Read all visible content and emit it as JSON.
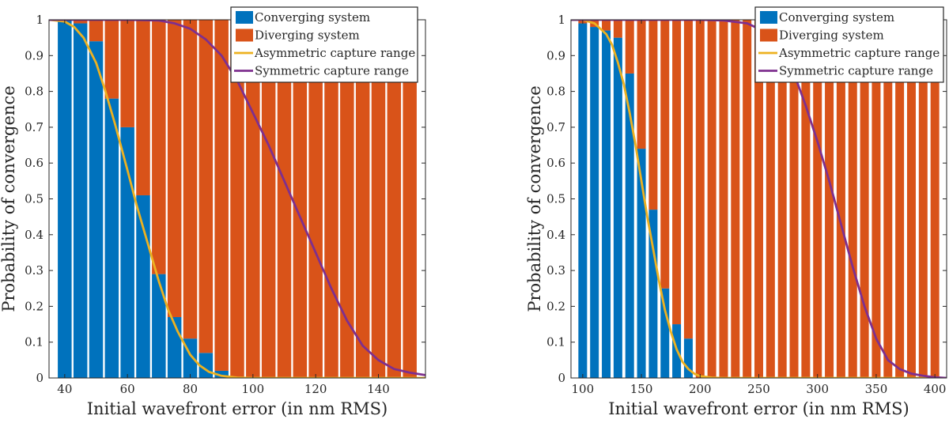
{
  "colors": {
    "converging": "#0072BD",
    "diverging": "#D95319",
    "asymmetric": "#EDB120",
    "symmetric": "#7E2F8E",
    "axis": "#262626"
  },
  "chart_data": [
    {
      "type": "bar",
      "xlabel": "Initial wavefront error (in nm RMS)",
      "ylabel": "Probability of convergence",
      "xlim": [
        35,
        155
      ],
      "ylim": [
        0,
        1
      ],
      "xticks": [
        40,
        60,
        80,
        100,
        120,
        140
      ],
      "yticks": [
        0,
        0.1,
        0.2,
        0.3,
        0.4,
        0.5,
        0.6,
        0.7,
        0.8,
        0.9,
        1
      ],
      "stacked": true,
      "grid": false,
      "legend_position": "top-right",
      "bar_x": [
        40,
        45,
        50,
        55,
        60,
        65,
        70,
        75,
        80,
        85,
        90,
        95,
        100,
        105,
        110,
        115,
        120,
        125,
        130,
        135,
        140,
        145,
        150
      ],
      "series": [
        {
          "name": "Converging system",
          "kind": "bar",
          "values": [
            1.0,
            0.99,
            0.94,
            0.78,
            0.7,
            0.51,
            0.29,
            0.17,
            0.11,
            0.07,
            0.02,
            0,
            0,
            0,
            0,
            0,
            0,
            0,
            0,
            0,
            0,
            0,
            0
          ]
        },
        {
          "name": "Diverging system",
          "kind": "bar",
          "values": [
            0.0,
            0.01,
            0.06,
            0.22,
            0.3,
            0.49,
            0.71,
            0.83,
            0.89,
            0.93,
            0.98,
            1,
            1,
            1,
            1,
            1,
            1,
            1,
            1,
            1,
            1,
            1,
            1
          ]
        },
        {
          "name": "Asymmetric capture range",
          "kind": "line",
          "x": [
            35,
            40,
            43,
            46,
            50,
            53,
            56,
            60,
            63,
            66,
            70,
            73,
            76,
            80,
            83,
            86,
            90,
            95,
            100,
            110,
            120,
            130,
            140,
            150,
            155
          ],
          "y": [
            1.0,
            0.995,
            0.98,
            0.95,
            0.88,
            0.8,
            0.71,
            0.58,
            0.48,
            0.39,
            0.27,
            0.19,
            0.13,
            0.065,
            0.035,
            0.017,
            0.006,
            0.001,
            0,
            0,
            0,
            0,
            0,
            0,
            0
          ]
        },
        {
          "name": "Symmetric capture range",
          "kind": "line",
          "x": [
            35,
            50,
            60,
            70,
            75,
            80,
            85,
            90,
            95,
            100,
            105,
            110,
            115,
            120,
            125,
            130,
            135,
            140,
            145,
            150,
            155
          ],
          "y": [
            1.0,
            1.0,
            1.0,
            0.998,
            0.99,
            0.975,
            0.945,
            0.9,
            0.83,
            0.74,
            0.65,
            0.55,
            0.45,
            0.35,
            0.25,
            0.16,
            0.09,
            0.05,
            0.025,
            0.015,
            0.008
          ]
        }
      ]
    },
    {
      "type": "bar",
      "xlabel": "Initial wavefront error (in nm RMS)",
      "ylabel": "Probability of convergence",
      "xlim": [
        90,
        410
      ],
      "ylim": [
        0,
        1
      ],
      "xticks": [
        100,
        150,
        200,
        250,
        300,
        350,
        400
      ],
      "yticks": [
        0,
        0.1,
        0.2,
        0.3,
        0.4,
        0.5,
        0.6,
        0.7,
        0.8,
        0.9,
        1
      ],
      "stacked": true,
      "grid": false,
      "legend_position": "top-right",
      "bar_x": [
        100,
        110,
        120,
        130,
        140,
        150,
        160,
        170,
        180,
        190,
        200,
        210,
        220,
        230,
        240,
        250,
        260,
        270,
        280,
        290,
        300,
        310,
        320,
        330,
        340,
        350,
        360,
        370,
        380,
        390,
        400
      ],
      "series": [
        {
          "name": "Converging system",
          "kind": "bar",
          "values": [
            0.99,
            0.98,
            0.97,
            0.95,
            0.85,
            0.64,
            0.47,
            0.25,
            0.15,
            0.11,
            0,
            0,
            0,
            0,
            0,
            0,
            0,
            0,
            0,
            0,
            0,
            0,
            0,
            0,
            0,
            0,
            0,
            0,
            0,
            0,
            0
          ]
        },
        {
          "name": "Diverging system",
          "kind": "bar",
          "values": [
            0.01,
            0.02,
            0.03,
            0.05,
            0.15,
            0.36,
            0.53,
            0.75,
            0.85,
            0.89,
            1,
            1,
            1,
            1,
            1,
            1,
            1,
            1,
            1,
            1,
            1,
            1,
            1,
            1,
            1,
            1,
            1,
            1,
            1,
            1,
            1
          ]
        },
        {
          "name": "Asymmetric capture range",
          "kind": "line",
          "x": [
            90,
            100,
            110,
            120,
            125,
            130,
            135,
            140,
            145,
            150,
            155,
            160,
            165,
            170,
            175,
            180,
            185,
            190,
            195,
            200,
            210,
            220,
            250,
            300,
            350,
            410
          ],
          "y": [
            1.0,
            1.0,
            0.99,
            0.96,
            0.93,
            0.88,
            0.82,
            0.74,
            0.65,
            0.55,
            0.45,
            0.36,
            0.27,
            0.19,
            0.13,
            0.08,
            0.045,
            0.025,
            0.012,
            0.005,
            0.001,
            0,
            0,
            0,
            0,
            0
          ]
        },
        {
          "name": "Symmetric capture range",
          "kind": "line",
          "x": [
            90,
            150,
            200,
            220,
            240,
            250,
            260,
            270,
            280,
            290,
            300,
            310,
            320,
            330,
            340,
            350,
            360,
            370,
            380,
            390,
            400,
            410
          ],
          "y": [
            1.0,
            1.0,
            1.0,
            0.998,
            0.99,
            0.975,
            0.95,
            0.91,
            0.85,
            0.76,
            0.66,
            0.55,
            0.43,
            0.31,
            0.2,
            0.11,
            0.05,
            0.025,
            0.012,
            0.006,
            0.002,
            0
          ]
        }
      ]
    }
  ]
}
